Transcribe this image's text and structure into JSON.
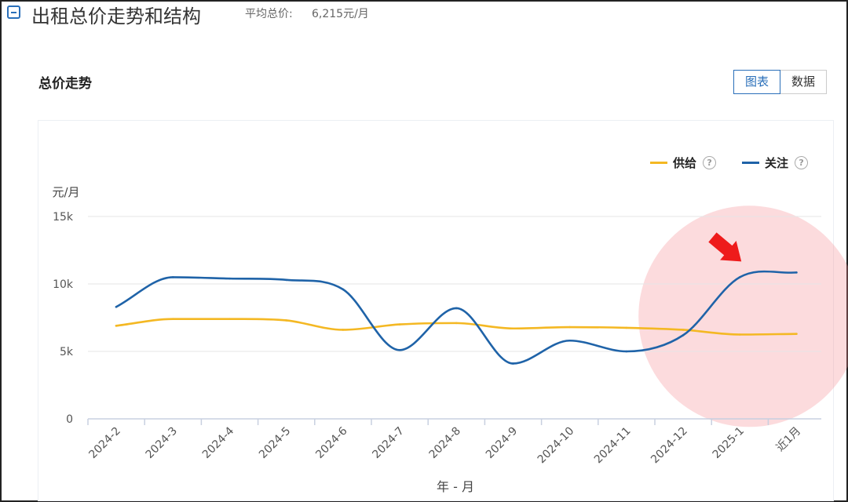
{
  "header": {
    "title": "出租总价走势和结构",
    "avg_label": "平均总价:",
    "avg_value": "6,215元/月"
  },
  "panel": {
    "title": "总价走势",
    "toggle": {
      "chart_label": "图表",
      "data_label": "数据",
      "active": "chart"
    }
  },
  "legend": {
    "help_glyph": "?"
  },
  "colors": {
    "supply": "#f4b823",
    "attention": "#1f63a8",
    "highlight": "rgba(244,137,143,0.3)",
    "arrow": "#ee1b1b"
  },
  "chart_data": {
    "type": "line",
    "title": "",
    "ylabel": "元/月",
    "xlabel": "年 - 月",
    "categories": [
      "2024-2",
      "2024-3",
      "2024-4",
      "2024-5",
      "2024-6",
      "2024-7",
      "2024-8",
      "2024-9",
      "2024-10",
      "2024-11",
      "2024-12",
      "2025-1",
      "近1月"
    ],
    "ylim": [
      0,
      15000
    ],
    "yticks": [
      0,
      5000,
      10000,
      15000
    ],
    "ytick_labels": [
      "0",
      "5k",
      "10k",
      "15k"
    ],
    "grid": "horizontal",
    "legend_position": "top-right",
    "series": [
      {
        "name": "供给",
        "color": "#f4b823",
        "values": [
          6900,
          7400,
          7400,
          7300,
          6600,
          7000,
          7100,
          6700,
          6800,
          6750,
          6600,
          6250,
          6300
        ]
      },
      {
        "name": "关注",
        "color": "#1f63a8",
        "values": [
          8300,
          10500,
          10400,
          10300,
          9600,
          5100,
          8200,
          4100,
          5800,
          5000,
          6200,
          10500,
          10850
        ]
      }
    ],
    "annotations": [
      {
        "type": "highlight-circle",
        "category": "2025-1",
        "value": 7600
      },
      {
        "type": "arrow",
        "category": "2025-1",
        "value": 10500
      }
    ]
  }
}
